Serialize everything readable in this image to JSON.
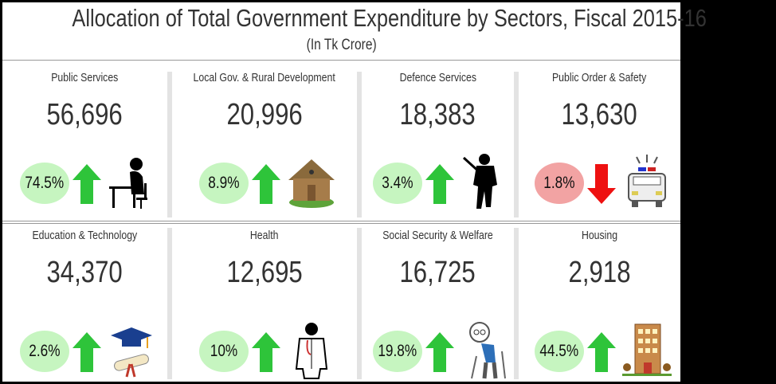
{
  "title": "Allocation of Total Government Expenditure by Sectors, Fiscal 2015-16",
  "subtitle": "(In Tk Crore)",
  "colors": {
    "up_badge": "#c6f5c0",
    "down_badge": "#f2a3a3",
    "up_arrow": "#2ec43a",
    "down_arrow": "#ee1111"
  },
  "sectors": [
    {
      "label": "Public Services",
      "value": "56,696",
      "change": "74.5%",
      "direction": "up",
      "icon": "person-at-desk-icon"
    },
    {
      "label": "Local Gov. & Rural Development",
      "value": "20,996",
      "change": "8.9%",
      "direction": "up",
      "icon": "hut-icon"
    },
    {
      "label": "Defence Services",
      "value": "18,383",
      "change": "3.4%",
      "direction": "up",
      "icon": "soldier-icon"
    },
    {
      "label": "Public Order & Safety",
      "value": "13,630",
      "change": "1.8%",
      "direction": "down",
      "icon": "police-car-icon"
    },
    {
      "label": "Education & Technology",
      "value": "34,370",
      "change": "2.6%",
      "direction": "up",
      "icon": "graduation-cap-diploma-icon"
    },
    {
      "label": "Health",
      "value": "12,695",
      "change": "10%",
      "direction": "up",
      "icon": "doctor-icon"
    },
    {
      "label": "Social Security & Welfare",
      "value": "16,725",
      "change": "19.8%",
      "direction": "up",
      "icon": "elderly-person-icon"
    },
    {
      "label": "Housing",
      "value": "2,918",
      "change": "44.5%",
      "direction": "up",
      "icon": "apartment-building-icon"
    }
  ]
}
